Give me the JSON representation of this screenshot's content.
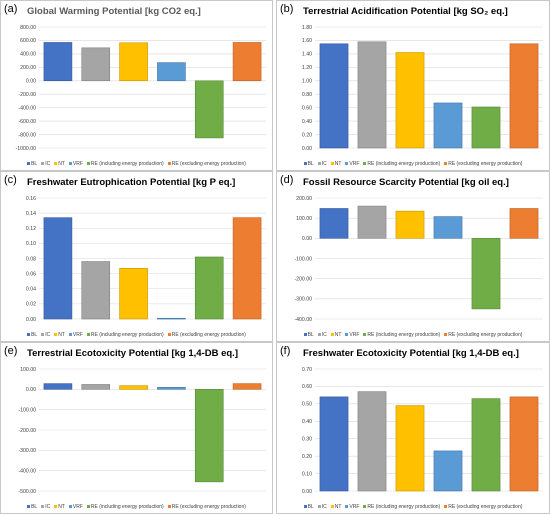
{
  "legend": [
    {
      "name": "BL",
      "color": "#4472C4"
    },
    {
      "name": "IC",
      "color": "#A5A5A5"
    },
    {
      "name": "NT",
      "color": "#FFC000"
    },
    {
      "name": "VRF",
      "color": "#5B9BD5"
    },
    {
      "name": "RE (including energy production)",
      "color": "#70AD47"
    },
    {
      "name": "RE (excluding energy production)",
      "color": "#ED7D31"
    }
  ],
  "chart_data": [
    {
      "type": "bar",
      "label": "(a)",
      "title": "Global Warming Potential [kg CO2 eq.]",
      "categories": [
        "BL",
        "IC",
        "NT",
        "VRF",
        "RE (including energy production)",
        "RE (excluding energy production)"
      ],
      "values": [
        570,
        490,
        565,
        270,
        -850,
        570
      ],
      "ylim": [
        -1000,
        800
      ],
      "yticks": [
        800,
        600,
        400,
        200,
        0,
        -200,
        -400,
        -600,
        -800,
        -1000
      ],
      "tick_labels": [
        "800.00",
        "600.00",
        "400.00",
        "200.00",
        "0.00",
        "-200.00",
        "-400.00",
        "-600.00",
        "-800.00",
        "-1000.00"
      ],
      "grid": true,
      "legend_position": "bottom"
    },
    {
      "type": "bar",
      "label": "(b)",
      "title": "Terrestrial Acidification Potential [kg SO₂ eq.]",
      "categories": [
        "BL",
        "IC",
        "NT",
        "VRF",
        "RE (including energy production)",
        "RE (excluding energy production)"
      ],
      "values": [
        1.55,
        1.58,
        1.42,
        0.67,
        0.61,
        1.55
      ],
      "ylim": [
        0,
        1.8
      ],
      "yticks": [
        1.8,
        1.6,
        1.4,
        1.2,
        1.0,
        0.8,
        0.6,
        0.4,
        0.2,
        0.0
      ],
      "tick_labels": [
        "1.80",
        "1.60",
        "1.40",
        "1.20",
        "1.00",
        "0.80",
        "0.60",
        "0.40",
        "0.20",
        "0.00"
      ],
      "grid": true,
      "legend_position": "bottom"
    },
    {
      "type": "bar",
      "label": "(c)",
      "title": "Freshwater Eutrophication Potential [kg P eq.]",
      "categories": [
        "BL",
        "IC",
        "NT",
        "VRF",
        "RE (including energy production)",
        "RE (excluding energy production)"
      ],
      "values": [
        0.134,
        0.076,
        0.067,
        0.001,
        0.082,
        0.134
      ],
      "ylim": [
        0,
        0.16
      ],
      "yticks": [
        0.16,
        0.14,
        0.12,
        0.1,
        0.08,
        0.06,
        0.04,
        0.02,
        0.0
      ],
      "tick_labels": [
        "0.16",
        "0.14",
        "0.12",
        "0.10",
        "0.08",
        "0.06",
        "0.04",
        "0.02",
        "0.00"
      ],
      "grid": true,
      "legend_position": "bottom"
    },
    {
      "type": "bar",
      "label": "(d)",
      "title": "Fossil Resource Scarcity Potential [kg oil eq.]",
      "categories": [
        "BL",
        "IC",
        "NT",
        "VRF",
        "RE (including energy production)",
        "RE (excluding energy production)"
      ],
      "values": [
        148,
        160,
        135,
        108,
        -350,
        148
      ],
      "ylim": [
        -400,
        200
      ],
      "yticks": [
        200,
        100,
        0,
        -100,
        -200,
        -300,
        -400
      ],
      "tick_labels": [
        "200.00",
        "100.00",
        "0.00",
        "-100.00",
        "-200.00",
        "-300.00",
        "-400.00"
      ],
      "grid": true,
      "legend_position": "bottom"
    },
    {
      "type": "bar",
      "label": "(e)",
      "title": "Terrestrial Ecotoxicity Potential [kg 1,4-DB eq.]",
      "categories": [
        "BL",
        "IC",
        "NT",
        "VRF",
        "RE (including energy production)",
        "RE (excluding energy production)"
      ],
      "values": [
        28,
        24,
        18,
        10,
        -455,
        28
      ],
      "ylim": [
        -500,
        100
      ],
      "yticks": [
        100,
        0,
        -100,
        -200,
        -300,
        -400,
        -500
      ],
      "tick_labels": [
        "100.00",
        "0.00",
        "-100.00",
        "-200.00",
        "-300.00",
        "-400.00",
        "-500.00"
      ],
      "grid": true,
      "legend_position": "bottom"
    },
    {
      "type": "bar",
      "label": "(f)",
      "title": "Freshwater Ecotoxicity Potential [kg 1,4-DB eq.]",
      "categories": [
        "BL",
        "IC",
        "NT",
        "VRF",
        "RE (including energy production)",
        "RE (excluding energy production)"
      ],
      "values": [
        0.54,
        0.57,
        0.49,
        0.23,
        0.53,
        0.54
      ],
      "ylim": [
        0,
        0.7
      ],
      "yticks": [
        0.7,
        0.6,
        0.5,
        0.4,
        0.3,
        0.2,
        0.1,
        0.0
      ],
      "tick_labels": [
        "0.70",
        "0.60",
        "0.50",
        "0.40",
        "0.30",
        "0.20",
        "0.10",
        "0.00"
      ],
      "grid": true,
      "legend_position": "bottom"
    }
  ]
}
